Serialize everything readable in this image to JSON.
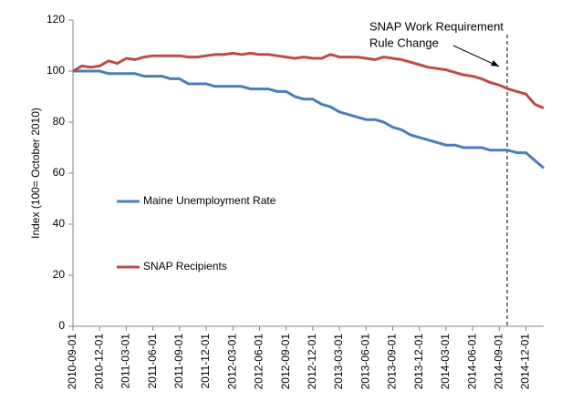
{
  "chart_data": {
    "type": "line",
    "y_axis_label": "Index (100= October 2010)",
    "annotation": [
      "SNAP Work Requirement",
      "Rule Change"
    ],
    "categories": [
      "2010-09-01",
      null,
      null,
      "2010-12-01",
      null,
      null,
      "2011-03-01",
      null,
      null,
      "2011-06-01",
      null,
      null,
      "2011-09-01",
      null,
      null,
      "2011-12-01",
      null,
      null,
      "2012-03-01",
      null,
      null,
      "2012-06-01",
      null,
      null,
      "2012-09-01",
      null,
      null,
      "2012-12-01",
      null,
      null,
      "2013-03-01",
      null,
      null,
      "2013-06-01",
      null,
      null,
      "2013-09-01",
      null,
      null,
      "2013-12-01",
      null,
      null,
      "2014-03-01",
      null,
      null,
      "2014-06-01",
      null,
      null,
      "2014-09-01",
      null,
      null,
      "2014-12-01",
      null,
      null
    ],
    "series": [
      {
        "name": "Maine Unemployment Rate",
        "color": "#4a7ebb",
        "values": [
          100,
          100,
          100,
          100,
          99,
          99,
          99,
          99,
          98,
          98,
          98,
          97,
          97,
          95,
          95,
          95,
          94,
          94,
          94,
          94,
          93,
          93,
          93,
          92,
          92,
          90,
          89,
          89,
          87,
          86,
          84,
          83,
          82,
          81,
          81,
          80,
          78,
          77,
          75,
          74,
          73,
          72,
          71,
          71,
          70,
          70,
          70,
          69,
          69,
          69,
          68,
          68,
          65,
          62
        ]
      },
      {
        "name": "SNAP Recipients",
        "color": "#be4b48",
        "values": [
          100,
          102,
          101.5,
          102,
          104,
          103,
          105,
          104.5,
          105.5,
          106,
          106,
          106,
          106,
          105.5,
          105.5,
          106,
          106.5,
          106.5,
          107,
          106.5,
          107,
          106.5,
          106.5,
          106,
          105.5,
          105,
          105.5,
          105,
          105,
          106.5,
          105.5,
          105.5,
          105.5,
          105,
          104.5,
          105.5,
          105,
          104.5,
          103.5,
          102.5,
          101.5,
          101,
          100.5,
          99.5,
          98.5,
          98,
          97,
          95.5,
          94.5,
          93,
          92,
          91,
          87,
          85.5
        ]
      }
    ],
    "ylim": [
      0,
      120
    ],
    "yticks": [
      0,
      20,
      40,
      60,
      80,
      100,
      120
    ],
    "grid": false
  }
}
